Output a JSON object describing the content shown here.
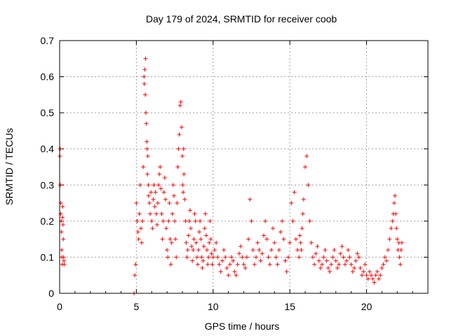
{
  "chart_data": {
    "type": "scatter",
    "title": "Day 179 of 2024, SRMTID for receiver coob",
    "xlabel": "GPS time / hours",
    "ylabel": "SRMTID / TECUs",
    "xlim": [
      0,
      24
    ],
    "ylim": [
      0,
      0.7
    ],
    "xticks": [
      0,
      5,
      10,
      15,
      20
    ],
    "xtick_labels": [
      "0",
      "5",
      "10",
      "15",
      "20"
    ],
    "yticks": [
      0,
      0.1,
      0.2,
      0.3,
      0.4,
      0.5,
      0.6,
      0.7
    ],
    "ytick_labels": [
      "0",
      "0.1",
      "0.2",
      "0.3",
      "0.4",
      "0.5",
      "0.6",
      "0.7"
    ],
    "grid": true,
    "marker": "+",
    "color": "#ff0000",
    "series": [
      {
        "name": "SRMTID",
        "x": [
          0.02,
          0.04,
          0.05,
          0.07,
          0.08,
          0.1,
          0.12,
          0.14,
          0.15,
          0.17,
          0.19,
          0.2,
          0.22,
          0.24,
          0.26,
          0.28,
          0.3,
          4.85,
          4.9,
          4.95,
          5.0,
          5.05,
          5.1,
          5.15,
          5.2,
          5.25,
          5.3,
          5.35,
          5.4,
          5.45,
          5.5,
          5.52,
          5.55,
          5.58,
          5.6,
          5.62,
          5.65,
          5.68,
          5.7,
          5.72,
          5.75,
          5.78,
          5.8,
          5.85,
          5.9,
          5.95,
          6.0,
          6.05,
          6.1,
          6.15,
          6.2,
          6.25,
          6.3,
          6.35,
          6.4,
          6.45,
          6.5,
          6.55,
          6.6,
          6.65,
          6.7,
          6.75,
          6.8,
          6.85,
          6.9,
          6.95,
          7.0,
          7.05,
          7.1,
          7.15,
          7.2,
          7.25,
          7.3,
          7.35,
          7.4,
          7.45,
          7.5,
          7.55,
          7.6,
          7.65,
          7.7,
          7.75,
          7.8,
          7.85,
          7.9,
          7.95,
          8.0,
          8.02,
          8.05,
          8.08,
          8.1,
          8.15,
          8.2,
          8.25,
          8.3,
          8.35,
          8.4,
          8.45,
          8.5,
          8.55,
          8.6,
          8.65,
          8.7,
          8.75,
          8.8,
          8.85,
          8.9,
          8.95,
          9.0,
          9.05,
          9.1,
          9.15,
          9.2,
          9.25,
          9.3,
          9.35,
          9.4,
          9.45,
          9.5,
          9.55,
          9.6,
          9.65,
          9.7,
          9.75,
          9.8,
          9.85,
          9.9,
          9.95,
          10.0,
          10.1,
          10.2,
          10.3,
          10.4,
          10.5,
          10.6,
          10.7,
          10.8,
          10.9,
          11.0,
          11.1,
          11.2,
          11.3,
          11.4,
          11.5,
          11.6,
          11.7,
          11.8,
          11.9,
          12.0,
          12.1,
          12.2,
          12.3,
          12.4,
          12.5,
          12.6,
          12.7,
          12.8,
          12.9,
          13.0,
          13.1,
          13.2,
          13.3,
          13.4,
          13.5,
          13.6,
          13.7,
          13.8,
          13.9,
          14.0,
          14.1,
          14.2,
          14.3,
          14.4,
          14.5,
          14.6,
          14.7,
          14.8,
          14.9,
          15.0,
          15.1,
          15.2,
          15.3,
          15.4,
          15.5,
          15.6,
          15.65,
          15.7,
          15.75,
          15.8,
          15.85,
          15.9,
          16.0,
          16.1,
          16.2,
          16.3,
          16.4,
          16.5,
          16.6,
          16.7,
          16.8,
          16.9,
          17.0,
          17.1,
          17.2,
          17.3,
          17.4,
          17.5,
          17.6,
          17.7,
          17.8,
          17.9,
          18.0,
          18.1,
          18.2,
          18.3,
          18.4,
          18.5,
          18.6,
          18.7,
          18.8,
          18.9,
          19.0,
          19.1,
          19.2,
          19.3,
          19.4,
          19.5,
          19.6,
          19.7,
          19.8,
          19.9,
          20.0,
          20.1,
          20.2,
          20.3,
          20.4,
          20.5,
          20.6,
          20.7,
          20.8,
          20.9,
          21.0,
          21.1,
          21.2,
          21.3,
          21.4,
          21.5,
          21.6,
          21.7,
          21.75,
          21.8,
          21.85,
          21.9,
          21.95,
          22.0,
          22.05,
          22.1,
          22.15,
          22.2,
          22.25,
          22.3
        ],
        "y": [
          0.38,
          0.4,
          0.3,
          0.22,
          0.25,
          0.2,
          0.17,
          0.12,
          0.1,
          0.08,
          0.21,
          0.24,
          0.19,
          0.15,
          0.1,
          0.09,
          0.08,
          0.0,
          0.05,
          0.08,
          0.25,
          0.2,
          0.17,
          0.15,
          0.22,
          0.3,
          0.18,
          0.14,
          0.2,
          0.35,
          0.6,
          0.58,
          0.62,
          0.55,
          0.65,
          0.5,
          0.47,
          0.42,
          0.4,
          0.33,
          0.38,
          0.3,
          0.27,
          0.25,
          0.22,
          0.28,
          0.2,
          0.18,
          0.26,
          0.3,
          0.24,
          0.28,
          0.22,
          0.19,
          0.25,
          0.3,
          0.33,
          0.35,
          0.29,
          0.22,
          0.15,
          0.2,
          0.28,
          0.32,
          0.26,
          0.18,
          0.12,
          0.1,
          0.2,
          0.25,
          0.15,
          0.08,
          0.14,
          0.22,
          0.3,
          0.27,
          0.2,
          0.15,
          0.1,
          0.25,
          0.35,
          0.4,
          0.44,
          0.52,
          0.53,
          0.46,
          0.38,
          0.3,
          0.28,
          0.4,
          0.33,
          0.26,
          0.2,
          0.14,
          0.1,
          0.12,
          0.16,
          0.2,
          0.23,
          0.18,
          0.13,
          0.09,
          0.12,
          0.15,
          0.22,
          0.2,
          0.14,
          0.1,
          0.08,
          0.12,
          0.17,
          0.2,
          0.15,
          0.1,
          0.07,
          0.09,
          0.13,
          0.18,
          0.22,
          0.16,
          0.12,
          0.08,
          0.1,
          0.14,
          0.2,
          0.15,
          0.11,
          0.08,
          0.1,
          0.12,
          0.14,
          0.1,
          0.08,
          0.06,
          0.09,
          0.12,
          0.1,
          0.07,
          0.05,
          0.08,
          0.1,
          0.09,
          0.06,
          0.05,
          0.08,
          0.11,
          0.13,
          0.1,
          0.08,
          0.07,
          0.1,
          0.15,
          0.26,
          0.2,
          0.12,
          0.08,
          0.1,
          0.14,
          0.12,
          0.09,
          0.11,
          0.16,
          0.2,
          0.15,
          0.1,
          0.08,
          0.12,
          0.18,
          0.14,
          0.1,
          0.08,
          0.12,
          0.17,
          0.2,
          0.15,
          0.09,
          0.06,
          0.1,
          0.14,
          0.25,
          0.2,
          0.28,
          0.15,
          0.12,
          0.1,
          0.16,
          0.14,
          0.12,
          0.18,
          0.22,
          0.26,
          0.35,
          0.38,
          0.3,
          0.2,
          0.14,
          0.1,
          0.08,
          0.11,
          0.13,
          0.09,
          0.07,
          0.08,
          0.1,
          0.12,
          0.09,
          0.07,
          0.06,
          0.08,
          0.1,
          0.12,
          0.09,
          0.07,
          0.08,
          0.11,
          0.13,
          0.1,
          0.08,
          0.09,
          0.12,
          0.1,
          0.08,
          0.06,
          0.07,
          0.09,
          0.11,
          0.1,
          0.07,
          0.05,
          0.06,
          0.08,
          0.05,
          0.04,
          0.06,
          0.05,
          0.04,
          0.03,
          0.05,
          0.06,
          0.04,
          0.05,
          0.07,
          0.08,
          0.1,
          0.09,
          0.12,
          0.15,
          0.18,
          0.2,
          0.22,
          0.25,
          0.27,
          0.22,
          0.18,
          0.15,
          0.12,
          0.14,
          0.1,
          0.08,
          0.12,
          0.14
        ]
      }
    ]
  }
}
